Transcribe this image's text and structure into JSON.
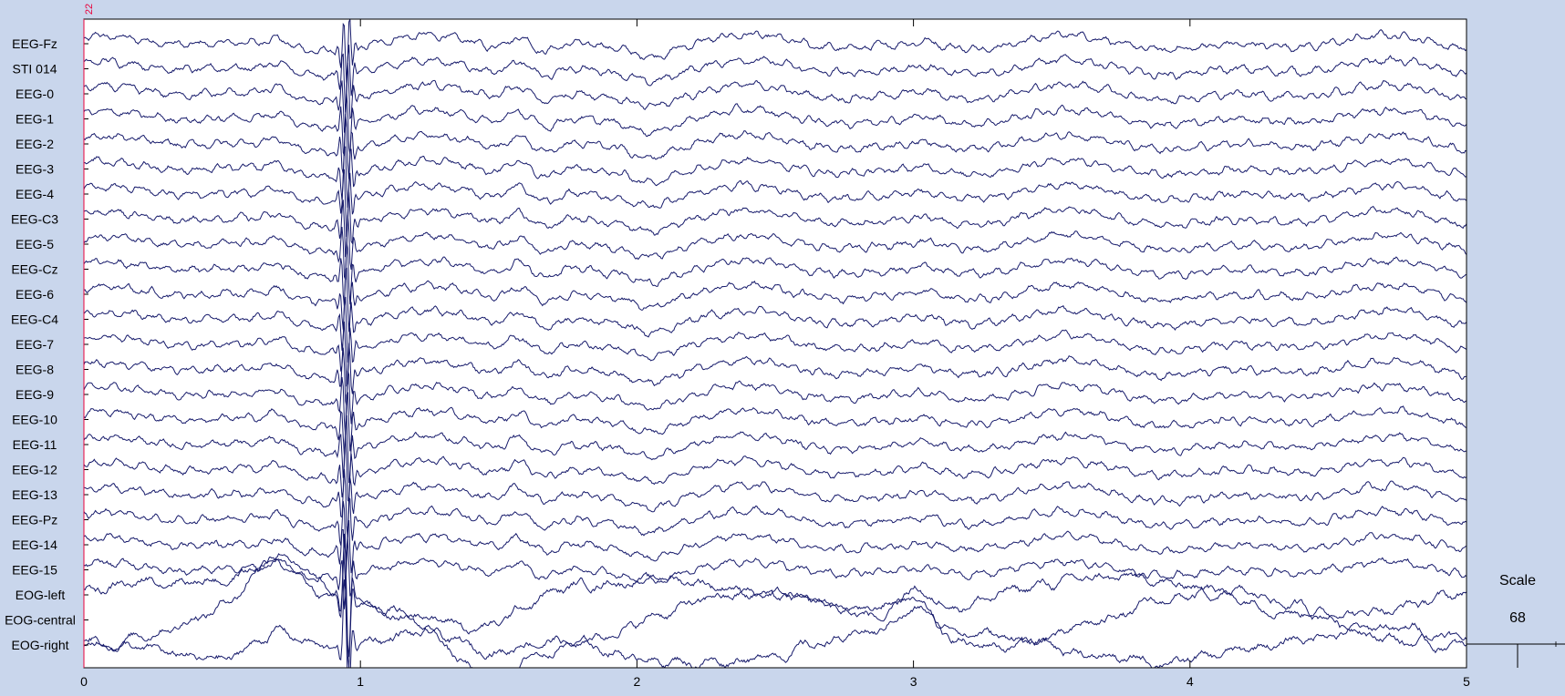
{
  "chart_data": {
    "type": "line",
    "title": "",
    "xlabel": "",
    "ylabel": "",
    "xlim": [
      0,
      5
    ],
    "x_ticks": [
      0,
      1,
      2,
      3,
      4,
      5
    ],
    "x_tick_labels": [
      "0",
      "1",
      "2",
      "3",
      "4",
      "5"
    ],
    "event_marker": {
      "time": 0,
      "label": "22",
      "color": "#e8003a"
    },
    "channels": [
      "EEG-Fz",
      "STI 014",
      "EEG-0",
      "EEG-1",
      "EEG-2",
      "EEG-3",
      "EEG-4",
      "EEG-C3",
      "EEG-5",
      "EEG-Cz",
      "EEG-6",
      "EEG-C4",
      "EEG-7",
      "EEG-8",
      "EEG-9",
      "EEG-10",
      "EEG-11",
      "EEG-12",
      "EEG-13",
      "EEG-Pz",
      "EEG-14",
      "EEG-15",
      "EOG-left",
      "EOG-central",
      "EOG-right"
    ],
    "scale": {
      "label": "Scale",
      "value": "68"
    },
    "trace_color": "#161a6b",
    "background_color": "#c9d6ec",
    "plot_background": "#ffffff"
  }
}
